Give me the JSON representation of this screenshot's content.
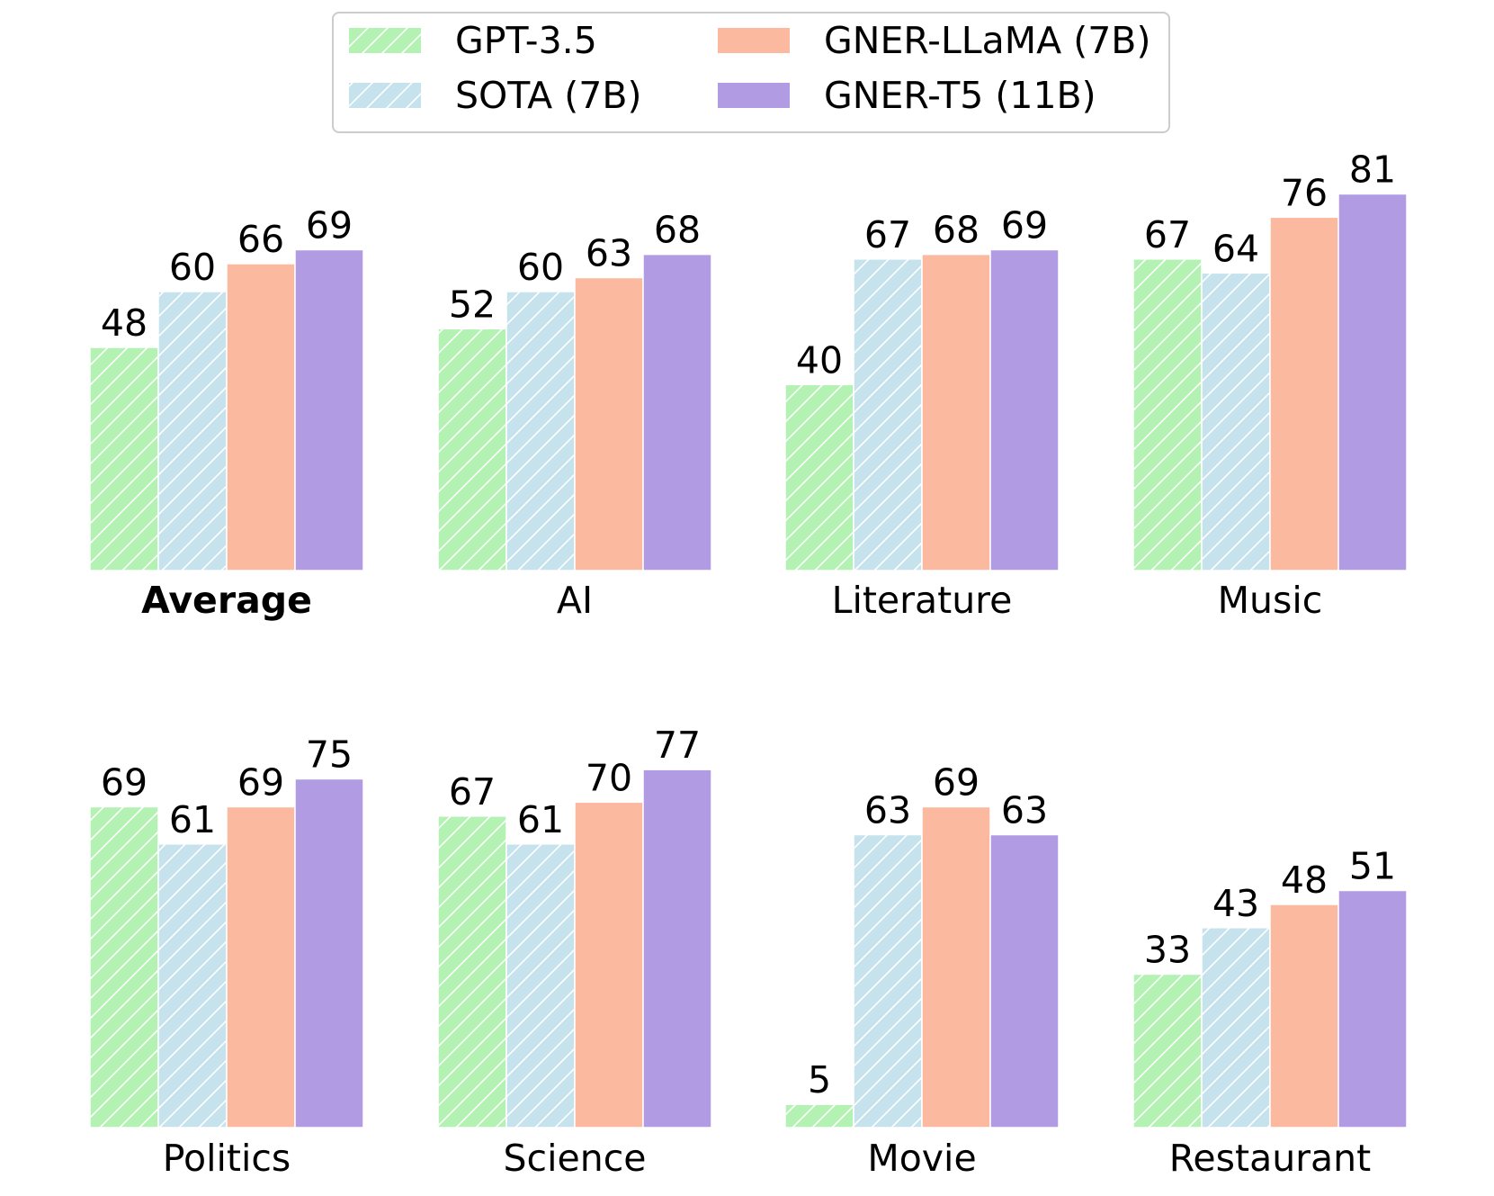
{
  "chart_data": {
    "type": "bar",
    "layout": "small-multiples",
    "series": [
      {
        "name": "GPT-3.5",
        "color": "#b3f2b3",
        "hatch": true
      },
      {
        "name": "SOTA (7B)",
        "color": "#c6e2ec",
        "hatch": true
      },
      {
        "name": "GNER-LLaMA (7B)",
        "color": "#fbb9a0",
        "hatch": false
      },
      {
        "name": "GNER-T5 (11B)",
        "color": "#b19ce3",
        "hatch": false
      }
    ],
    "panels": [
      {
        "label": "Average",
        "bold": true,
        "values": [
          48,
          60,
          66,
          69
        ]
      },
      {
        "label": "AI",
        "bold": false,
        "values": [
          52,
          60,
          63,
          68
        ]
      },
      {
        "label": "Literature",
        "bold": false,
        "values": [
          40,
          67,
          68,
          69
        ]
      },
      {
        "label": "Music",
        "bold": false,
        "values": [
          67,
          64,
          76,
          81
        ]
      },
      {
        "label": "Politics",
        "bold": false,
        "values": [
          69,
          61,
          69,
          75
        ]
      },
      {
        "label": "Science",
        "bold": false,
        "values": [
          67,
          61,
          70,
          77
        ]
      },
      {
        "label": "Movie",
        "bold": false,
        "values": [
          5,
          63,
          69,
          63
        ]
      },
      {
        "label": "Restaurant",
        "bold": false,
        "values": [
          33,
          43,
          48,
          51
        ]
      }
    ],
    "ylim": [
      0,
      100
    ],
    "legend_position": "top-center"
  }
}
